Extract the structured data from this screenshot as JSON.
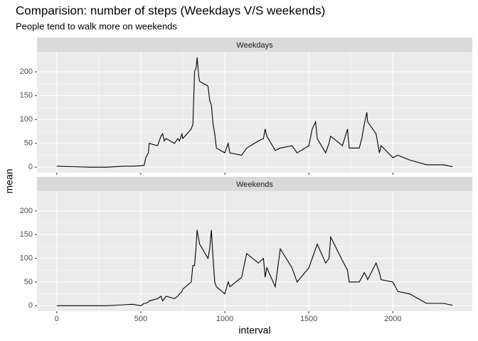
{
  "chart_data": {
    "type": "line",
    "facets": true,
    "title": "Comparision: number of steps (Weekdays V/S weekends)",
    "subtitle": "People tend to walk more on weekends",
    "xlabel": "interval",
    "ylabel": "mean",
    "xlim": [
      -117.75,
      2472.75
    ],
    "ylim": [
      -11.5,
      241.9
    ],
    "xticks": [
      0,
      500,
      1000,
      1500,
      2000
    ],
    "yticks": [
      0,
      50,
      100,
      150,
      200
    ],
    "grid": true,
    "x": [
      0,
      100,
      200,
      300,
      400,
      450,
      500,
      520,
      530,
      545,
      550,
      600,
      620,
      630,
      640,
      650,
      700,
      720,
      730,
      745,
      750,
      800,
      810,
      820,
      830,
      835,
      845,
      850,
      900,
      910,
      920,
      930,
      940,
      950,
      1000,
      1020,
      1030,
      1100,
      1130,
      1200,
      1230,
      1240,
      1250,
      1300,
      1330,
      1400,
      1430,
      1500,
      1520,
      1540,
      1550,
      1600,
      1620,
      1630,
      1700,
      1730,
      1740,
      1800,
      1815,
      1830,
      1845,
      1850,
      1900,
      1920,
      1930,
      2000,
      2030,
      2100,
      2200,
      2300,
      2355
    ],
    "series": [
      {
        "name": "Weekdays",
        "color": "#000000",
        "values": [
          2,
          1,
          0,
          0,
          2,
          2,
          3,
          4,
          20,
          30,
          50,
          45,
          65,
          70,
          55,
          60,
          50,
          60,
          55,
          70,
          60,
          80,
          90,
          200,
          210,
          230,
          190,
          180,
          170,
          140,
          130,
          90,
          70,
          40,
          30,
          50,
          30,
          25,
          40,
          55,
          60,
          80,
          65,
          35,
          40,
          45,
          30,
          45,
          80,
          95,
          60,
          30,
          50,
          65,
          45,
          80,
          40,
          40,
          60,
          90,
          115,
          95,
          70,
          30,
          45,
          20,
          25,
          15,
          5,
          5,
          1
        ]
      },
      {
        "name": "Weekends",
        "color": "#000000",
        "values": [
          0,
          0,
          0,
          0,
          2,
          3,
          0,
          5,
          5,
          8,
          10,
          15,
          20,
          10,
          15,
          20,
          15,
          20,
          25,
          30,
          35,
          50,
          85,
          85,
          130,
          160,
          140,
          130,
          100,
          120,
          160,
          100,
          50,
          40,
          25,
          50,
          40,
          60,
          110,
          90,
          100,
          60,
          80,
          40,
          120,
          80,
          50,
          80,
          100,
          120,
          130,
          90,
          100,
          145,
          95,
          75,
          50,
          50,
          60,
          70,
          60,
          55,
          90,
          70,
          55,
          50,
          30,
          25,
          5,
          5,
          1
        ]
      }
    ]
  }
}
